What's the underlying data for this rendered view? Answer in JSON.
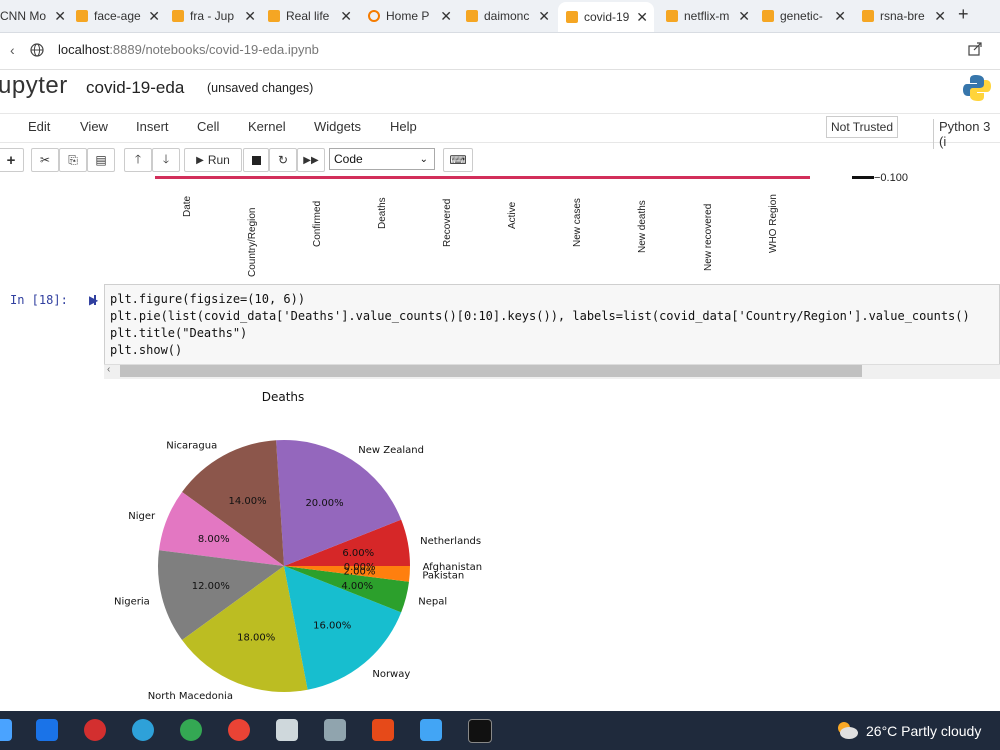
{
  "browser": {
    "tabs": [
      {
        "label": "CNN Mo"
      },
      {
        "label": "face-age"
      },
      {
        "label": "fra - Jup"
      },
      {
        "label": "Real life"
      },
      {
        "label": "Home P"
      },
      {
        "label": "daimonc"
      },
      {
        "label": "covid-19"
      },
      {
        "label": "netflix-m"
      },
      {
        "label": "genetic-"
      },
      {
        "label": "rsna-bre"
      }
    ],
    "url_host": "localhost",
    "url_rest": ":8889/notebooks/covid-19-eda.ipynb"
  },
  "jupyter": {
    "logo_text": "upyter",
    "notebook_name": "covid-19-eda",
    "save_status": "(unsaved changes)",
    "menu": [
      "Edit",
      "View",
      "Insert",
      "Cell",
      "Kernel",
      "Widgets",
      "Help"
    ],
    "trust": "Not Trusted",
    "kernel": "Python 3 (i",
    "toolbar": {
      "run_label": "Run",
      "cell_type": "Code"
    }
  },
  "previous_output": {
    "xticklabels": [
      "Date",
      "Country/Region",
      "Confirmed",
      "Deaths",
      "Recovered",
      "Active",
      "New cases",
      "New deaths",
      "New recovered",
      "WHO Region"
    ],
    "legend_value": "−0.100"
  },
  "cell": {
    "prompt": "In [18]:",
    "lines": [
      "plt.figure(figsize=(10, 6))",
      "plt.pie(list(covid_data['Deaths'].value_counts()[0:10].keys()), labels=list(covid_data['Country/Region'].value_counts()",
      "plt.title(\"Deaths\")",
      "plt.show()"
    ]
  },
  "chart_data": {
    "type": "pie",
    "title": "Deaths",
    "labels": [
      "Afghanistan",
      "Netherlands",
      "New Zealand",
      "Nicaragua",
      "Niger",
      "Nigeria",
      "North Macedonia",
      "Norway",
      "Nepal",
      "Pakistan"
    ],
    "values": [
      0.0,
      6.0,
      20.0,
      14.0,
      8.0,
      12.0,
      18.0,
      16.0,
      4.0,
      2.0
    ],
    "pct_labels": [
      "0.00%",
      "6.00%",
      "20.00%",
      "14.00%",
      "8.00%",
      "12.00%",
      "18.00%",
      "16.00%",
      "4.00%",
      "2.00%"
    ],
    "colors": [
      "#1f77b4",
      "#d62728",
      "#9467bd",
      "#8c564b",
      "#e377c2",
      "#7f7f7f",
      "#bcbd22",
      "#17becf",
      "#2ca02c",
      "#ff7f0e"
    ]
  },
  "taskbar": {
    "weather": "26°C  Partly cloudy"
  }
}
